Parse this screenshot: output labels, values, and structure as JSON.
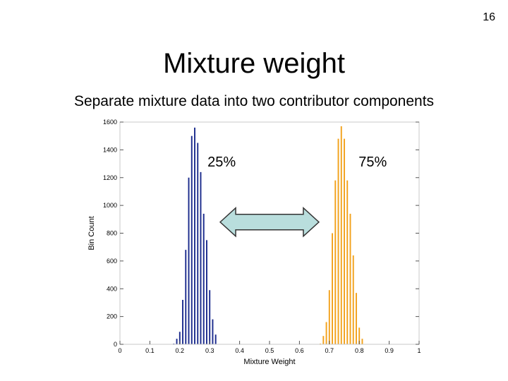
{
  "slide": {
    "number": "16",
    "title": "Mixture weight",
    "subtitle": "Separate mixture data into two contributor components"
  },
  "colors": {
    "series_a": "#1a2a8c",
    "series_b": "#f2a11a",
    "arrow_fill": "#b9dedd",
    "arrow_stroke": "#333333"
  },
  "chart_data": {
    "type": "bar",
    "xlabel": "Mixture Weight",
    "ylabel": "Bin Count",
    "xlim": [
      0,
      1
    ],
    "ylim": [
      0,
      1600
    ],
    "xticks": [
      "0",
      "0.1",
      "0.2",
      "0.3",
      "0.4",
      "0.5",
      "0.6",
      "0.7",
      "0.8",
      "0.9",
      "1"
    ],
    "yticks": [
      "0",
      "200",
      "400",
      "600",
      "800",
      "1000",
      "1200",
      "1400",
      "1600"
    ],
    "grid": false,
    "annotations": [
      {
        "text": "25%",
        "x": 0.34,
        "y": 1340
      },
      {
        "text": "75%",
        "x": 0.845,
        "y": 1340
      },
      {
        "text": "double-arrow",
        "x_from": 0.335,
        "x_to": 0.665,
        "y": 880
      }
    ],
    "series": [
      {
        "x": [
          0.18,
          0.19,
          0.2,
          0.21,
          0.22,
          0.23,
          0.24,
          0.25,
          0.26,
          0.27,
          0.28,
          0.29,
          0.3,
          0.31,
          0.32
        ],
        "values": [
          5,
          40,
          90,
          320,
          680,
          1200,
          1500,
          1560,
          1450,
          1240,
          940,
          750,
          390,
          180,
          70
        ]
      },
      {
        "x": [
          0.67,
          0.68,
          0.69,
          0.7,
          0.71,
          0.72,
          0.73,
          0.74,
          0.75,
          0.76,
          0.77,
          0.78,
          0.79,
          0.8,
          0.81
        ],
        "values": [
          5,
          60,
          160,
          390,
          800,
          1180,
          1480,
          1570,
          1480,
          1180,
          940,
          640,
          370,
          120,
          40
        ]
      }
    ]
  }
}
